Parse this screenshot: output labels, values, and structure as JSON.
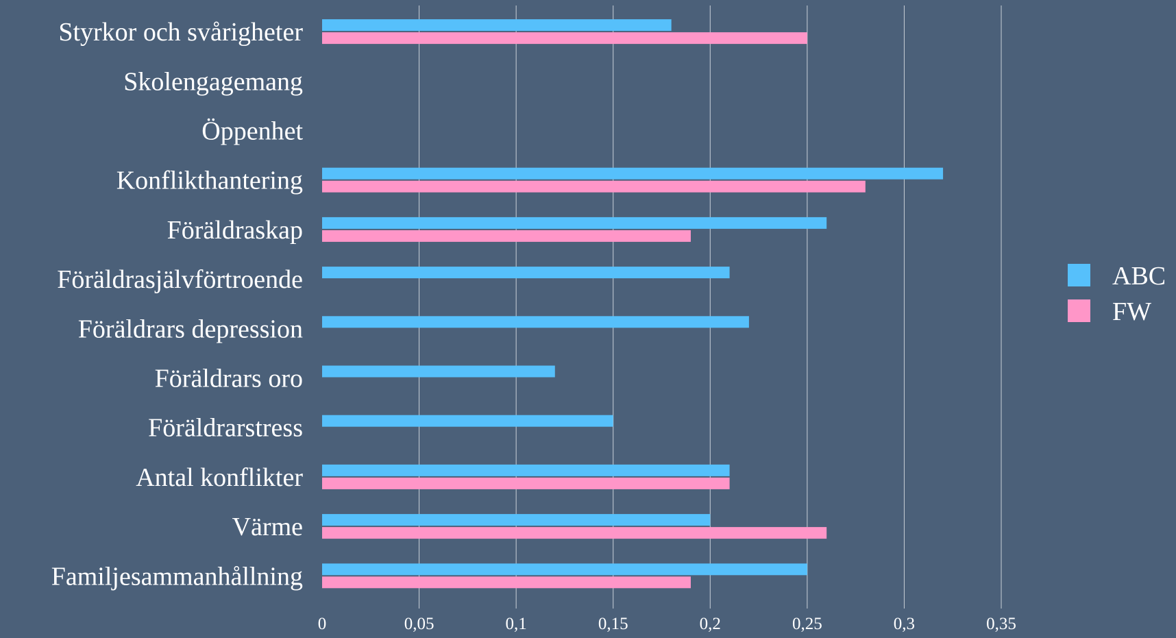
{
  "colors": {
    "background": "#4b6079",
    "gridline": "#c9d0d8",
    "text": "#ffffff"
  },
  "chart_data": {
    "type": "bar",
    "orientation": "horizontal",
    "categories": [
      "Styrkor och svårigheter",
      "Skolengagemang",
      "Öppenhet",
      "Konflikthantering",
      "Föräldraskap",
      "Föräldrasjälvförtroende",
      "Föräldrars depression",
      "Föräldrars oro",
      "Föräldrarstress",
      "Antal konflikter",
      "Värme",
      "Familjesammanhållning"
    ],
    "series": [
      {
        "name": "ABC",
        "color": "#56c0fb",
        "values": [
          0.18,
          null,
          null,
          0.32,
          0.26,
          0.21,
          0.22,
          0.12,
          0.15,
          0.21,
          0.2,
          0.25
        ]
      },
      {
        "name": "FW",
        "color": "#ff96c8",
        "values": [
          0.25,
          null,
          null,
          0.28,
          0.19,
          null,
          null,
          null,
          null,
          0.21,
          0.26,
          0.19
        ]
      }
    ],
    "xlim": [
      0,
      0.35
    ],
    "xticks": [
      0,
      0.05,
      0.1,
      0.15,
      0.2,
      0.25,
      0.3,
      0.35
    ],
    "xtick_labels": [
      "0",
      "0,05",
      "0,1",
      "0,15",
      "0,2",
      "0,25",
      "0,3",
      "0,35"
    ],
    "grid": true,
    "legend_position": "right",
    "title": "",
    "xlabel": "",
    "ylabel": ""
  }
}
